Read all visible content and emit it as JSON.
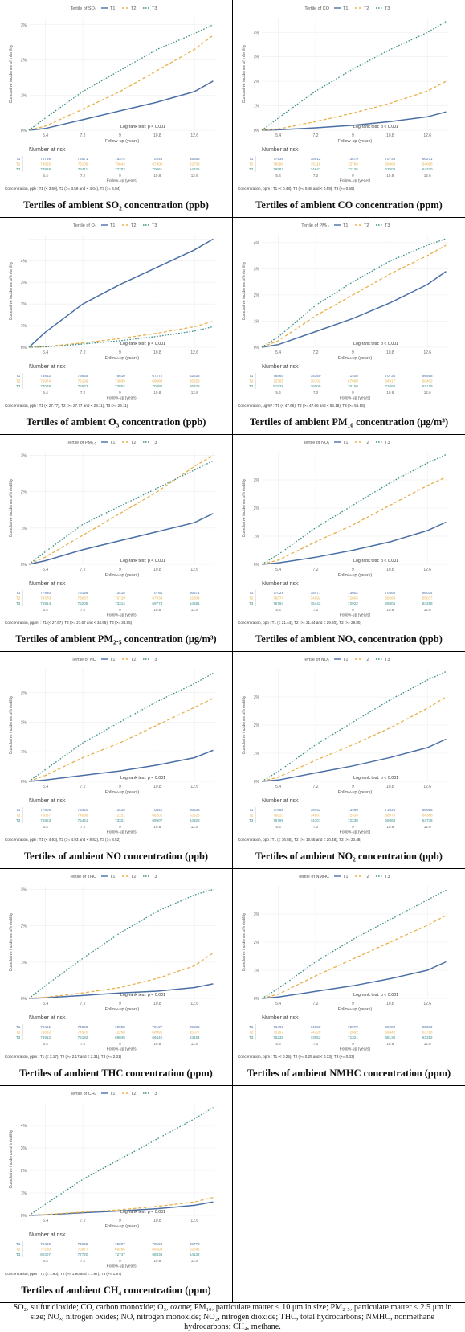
{
  "common": {
    "legend_title_prefix": "Tertile of",
    "tertile_names": [
      "T1",
      "T2",
      "T3"
    ],
    "ylabel": "Cumulative incidence of infertility",
    "xlabel": "Follow-up (years)",
    "x_ticks": [
      "5.4",
      "7.2",
      "9",
      "10.8",
      "12.6"
    ],
    "risk_title": "Number at risk",
    "series_colors": [
      "#4a6fa5",
      "#e8b04a",
      "#3c8f8a"
    ],
    "y_ticks": [
      "0%",
      "1%",
      "2%",
      "3%",
      "4%"
    ]
  },
  "chart_data": [
    {
      "type": "line",
      "pollutant": "SO₂",
      "title": "Tertiles of ambient SO₂ concentration (ppb)",
      "logrank": "Log-rank test: p < 0.001",
      "concentration": "Concentration, ppb : T1 (< 3.59), T2 (>= 3.59 and < 4.04), T3 (>= 4.04)",
      "x": [
        4.6,
        5.4,
        7.2,
        9,
        10.8,
        12.6,
        13.5
      ],
      "ylim": [
        0,
        3.2
      ],
      "y_ticks_shown": 4,
      "series": [
        {
          "name": "T1",
          "values": [
            0,
            0.05,
            0.3,
            0.55,
            0.8,
            1.1,
            1.4
          ]
        },
        {
          "name": "T2",
          "values": [
            0,
            0.12,
            0.6,
            1.1,
            1.7,
            2.3,
            2.7
          ]
        },
        {
          "name": "T3",
          "values": [
            0,
            0.35,
            1.1,
            1.7,
            2.3,
            2.75,
            3.0
          ]
        }
      ],
      "risk": [
        [
          "76798",
          "76071",
          "75374",
          "70246",
          "65655"
        ],
        [
          "74865",
          "73109",
          "70642",
          "67400",
          "62733"
        ],
        [
          "74928",
          "74411",
          "72782",
          "70061",
          "64825"
        ]
      ]
    },
    {
      "type": "line",
      "pollutant": "CO",
      "title": "Tertiles of ambient CO concentration (ppm)",
      "logrank": "Log-rank test: p < 0.001",
      "concentration": "Concentration, ppm : T1 (< 0.48), T2 (>= 0.48 and < 0.59), T3 (>= 0.59)",
      "x": [
        4.6,
        5.4,
        7.2,
        9,
        10.8,
        12.6,
        13.5
      ],
      "ylim": [
        0,
        4.6
      ],
      "y_ticks_shown": 5,
      "series": [
        {
          "name": "T1",
          "values": [
            0,
            0.02,
            0.1,
            0.2,
            0.35,
            0.55,
            0.75
          ]
        },
        {
          "name": "T2",
          "values": [
            0,
            0.05,
            0.35,
            0.7,
            1.1,
            1.6,
            2.0
          ]
        },
        {
          "name": "T3",
          "values": [
            0,
            0.5,
            1.6,
            2.5,
            3.3,
            4.0,
            4.45
          ]
        }
      ],
      "risk": [
        [
          "77538",
          "75912",
          "73579",
          "70735",
          "66271"
        ],
        [
          "76998",
          "75118",
          "72783",
          "69469",
          "64668"
        ],
        [
          "76587",
          "74842",
          "71136",
          "67908",
          "64270"
        ]
      ]
    },
    {
      "type": "line",
      "pollutant": "O₃",
      "title": "Tertiles of ambient O₃ concentration (ppb)",
      "logrank": "Log-rank test: p < 0.001",
      "concentration": "Concentration, ppb : T1 (< 27.77), T2 (>= 27.77 and < 29.11), T3 (>= 29.11)",
      "x": [
        4.6,
        5.4,
        7.2,
        9,
        10.8,
        12.6,
        13.5
      ],
      "ylim": [
        0,
        5.2
      ],
      "y_ticks_shown": 6,
      "series": [
        {
          "name": "T1",
          "values": [
            0,
            0.7,
            2.0,
            2.9,
            3.7,
            4.5,
            5.0
          ]
        },
        {
          "name": "T2",
          "values": [
            0,
            0.03,
            0.2,
            0.4,
            0.65,
            0.95,
            1.2
          ]
        },
        {
          "name": "T3",
          "values": [
            0,
            0.02,
            0.15,
            0.3,
            0.5,
            0.75,
            0.95
          ]
        }
      ],
      "risk": [
        [
          "76852",
          "75665",
          "76610",
          "67272",
          "62535"
        ],
        [
          "76974",
          "75199",
          "73039",
          "69880",
          "66258"
        ],
        [
          "77069",
          "75662",
          "73854",
          "70880",
          "66328"
        ]
      ]
    },
    {
      "type": "line",
      "pollutant": "PM₁₀",
      "title": "Tertiles of ambient PM₁₀ concentration (μg/m³)",
      "logrank": "Log-rank test: p < 0.001",
      "concentration": "Concentration, μg/m³ : T1 (< 47.66), T2 (>= 47.66 and < 56.18), T3 (>= 56.18)",
      "x": [
        4.6,
        5.4,
        7.2,
        9,
        10.8,
        12.6,
        13.5
      ],
      "ylim": [
        0,
        4.3
      ],
      "y_ticks_shown": 5,
      "series": [
        {
          "name": "T1",
          "values": [
            0,
            0.1,
            0.6,
            1.1,
            1.7,
            2.4,
            2.9
          ]
        },
        {
          "name": "T2",
          "values": [
            0,
            0.25,
            1.2,
            2.0,
            2.8,
            3.5,
            3.9
          ]
        },
        {
          "name": "T3",
          "values": [
            0,
            0.4,
            1.6,
            2.5,
            3.3,
            3.9,
            4.15
          ]
        }
      ],
      "risk": [
        [
          "76865",
          "75360",
          "71408",
          "70735",
          "66658"
        ],
        [
          "72365",
          "70132",
          "67909",
          "64917",
          "60462"
        ],
        [
          "81829",
          "78009",
          "76150",
          "72660",
          "67129"
        ]
      ]
    },
    {
      "type": "line",
      "pollutant": "PM₂.₅",
      "title": "Tertiles of ambient PM₂.₅ concentration (μg/m³)",
      "logrank": "Log-rank test: p < 0.001",
      "concentration": "Concentration, μg/m³ : T1 (< 27.67), T2 (>= 27.67 and < 34.95), T3 (>= 34.95)",
      "x": [
        4.6,
        5.4,
        7.2,
        9,
        10.8,
        12.6,
        13.5
      ],
      "ylim": [
        0,
        3.1
      ],
      "y_ticks_shown": 4,
      "series": [
        {
          "name": "T1",
          "values": [
            0,
            0.1,
            0.4,
            0.65,
            0.9,
            1.15,
            1.4
          ]
        },
        {
          "name": "T2",
          "values": [
            0,
            0.2,
            0.8,
            1.4,
            2.0,
            2.7,
            3.0
          ]
        },
        {
          "name": "T3",
          "values": [
            0,
            0.35,
            1.1,
            1.6,
            2.1,
            2.6,
            2.85
          ]
        }
      ],
      "risk": [
        [
          "77930",
          "76189",
          "73418",
          "70784",
          "66674"
        ],
        [
          "74370",
          "73087",
          "70729",
          "67938",
          "62804"
        ],
        [
          "75914",
          "75205",
          "73314",
          "69773",
          "64691"
        ]
      ]
    },
    {
      "type": "line",
      "pollutant": "NOₓ",
      "title": "Tertiles of ambient NOₓ concentration (ppb)",
      "logrank": "Log-rank test: p < 0.001",
      "concentration": "Concentration, ppb : T1 (< 21.44), T2 (>= 21.44 and < 29.80), T3 (>= 29.80)",
      "x": [
        4.6,
        5.4,
        7.2,
        9,
        10.8,
        12.6,
        13.5
      ],
      "ylim": [
        0,
        4.0
      ],
      "y_ticks_shown": 4,
      "series": [
        {
          "name": "T1",
          "values": [
            0,
            0.05,
            0.25,
            0.5,
            0.8,
            1.2,
            1.5
          ]
        },
        {
          "name": "T2",
          "values": [
            0,
            0.15,
            0.8,
            1.4,
            2.1,
            2.8,
            3.1
          ]
        },
        {
          "name": "T3",
          "values": [
            0,
            0.35,
            1.3,
            2.1,
            2.9,
            3.6,
            3.9
          ]
        }
      ],
      "risk": [
        [
          "77029",
          "75477",
          "73002",
          "70365",
          "66034"
        ],
        [
          "76874",
          "74992",
          "72603",
          "69264",
          "65037"
        ],
        [
          "76794",
          "75442",
          "72922",
          "69305",
          "64318"
        ]
      ]
    },
    {
      "type": "line",
      "pollutant": "NO",
      "title": "Tertiles of ambient NO concentration (ppb)",
      "logrank": "Log-rank test: p < 0.001",
      "concentration": "Concentration, ppb : T1 (< 4.93), T2 (>= 4.93 and < 8.52), T3 (>= 8.52)",
      "x": [
        4.6,
        5.4,
        7.2,
        9,
        10.8,
        12.6,
        13.5
      ],
      "ylim": [
        0,
        3.8
      ],
      "y_ticks_shown": 4,
      "series": [
        {
          "name": "T1",
          "values": [
            0,
            0.05,
            0.2,
            0.35,
            0.55,
            0.8,
            1.05
          ]
        },
        {
          "name": "T2",
          "values": [
            0,
            0.2,
            0.8,
            1.3,
            1.9,
            2.5,
            2.8
          ]
        },
        {
          "name": "T3",
          "values": [
            0,
            0.4,
            1.3,
            2.0,
            2.7,
            3.3,
            3.65
          ]
        }
      ],
      "risk": [
        [
          "77805",
          "75420",
          "73425",
          "70441",
          "66333"
        ],
        [
          "75087",
          "74988",
          "72131",
          "68201",
          "63523"
        ],
        [
          "75853",
          "75461",
          "73321",
          "69907",
          "64328"
        ]
      ]
    },
    {
      "type": "line",
      "pollutant": "NO₂",
      "title": "Tertiles of ambient NO₂ concentration (ppb)",
      "logrank": "Log-rank test: p < 0.001",
      "concentration": "Concentration, ppb : T1 (< 16.55), T2 (>= 16.55 and < 20.48), T3 (>= 20.48)",
      "x": [
        4.6,
        5.4,
        7.2,
        9,
        10.8,
        12.6,
        13.5
      ],
      "ylim": [
        0,
        4.0
      ],
      "y_ticks_shown": 4,
      "series": [
        {
          "name": "T1",
          "values": [
            0,
            0.05,
            0.3,
            0.55,
            0.85,
            1.2,
            1.5
          ]
        },
        {
          "name": "T2",
          "values": [
            0,
            0.15,
            0.75,
            1.3,
            1.9,
            2.6,
            3.0
          ]
        },
        {
          "name": "T3",
          "values": [
            0,
            0.35,
            1.3,
            2.1,
            2.9,
            3.6,
            3.9
          ]
        }
      ],
      "risk": [
        [
          "77688",
          "75442",
          "73469",
          "71028",
          "66918"
        ],
        [
          "76823",
          "74897",
          "72333",
          "68973",
          "64388"
        ],
        [
          "76799",
          "74301",
          "72238",
          "69368",
          "64738"
        ]
      ]
    },
    {
      "type": "line",
      "pollutant": "THC",
      "title": "Tertiles of ambient THC concentration (ppm)",
      "logrank": "Log-rank test: p < 0.001",
      "concentration": "Concentration, ppm : T1 (< 2.17), T2 (>= 2.17 and < 2.31), T3 (>= 2.31)",
      "x": [
        4.6,
        5.4,
        7.2,
        9,
        10.8,
        12.6,
        13.5
      ],
      "ylim": [
        0,
        3.1
      ],
      "y_ticks_shown": 4,
      "series": [
        {
          "name": "T1",
          "values": [
            0,
            0.02,
            0.08,
            0.15,
            0.2,
            0.3,
            0.4
          ]
        },
        {
          "name": "T2",
          "values": [
            0,
            0.03,
            0.15,
            0.3,
            0.55,
            0.9,
            1.25
          ]
        },
        {
          "name": "T3",
          "values": [
            0,
            0.35,
            1.1,
            1.8,
            2.4,
            2.85,
            3.0
          ]
        }
      ],
      "risk": [
        [
          "76461",
          "74890",
          "72958",
          "70197",
          "65989"
        ],
        [
          "76682",
          "74570",
          "72268",
          "68991",
          "65077"
        ],
        [
          "76912",
          "75192",
          "69045",
          "66442",
          "63154"
        ]
      ]
    },
    {
      "type": "line",
      "pollutant": "NMHC",
      "title": "Tertiles of ambient NMHC concentration (ppm)",
      "logrank": "Log-rank test: p < 0.001",
      "concentration": "Concentration, ppm : T1 (< 0.25), T2 (>= 0.25 and < 0.33), T3 (>= 0.33)",
      "x": [
        4.6,
        5.4,
        7.2,
        9,
        10.8,
        12.6,
        13.5
      ],
      "ylim": [
        0,
        4.0
      ],
      "y_ticks_shown": 4,
      "series": [
        {
          "name": "T1",
          "values": [
            0,
            0.05,
            0.25,
            0.45,
            0.7,
            1.0,
            1.3
          ]
        },
        {
          "name": "T2",
          "values": [
            0,
            0.15,
            0.8,
            1.4,
            2.0,
            2.6,
            2.95
          ]
        },
        {
          "name": "T3",
          "values": [
            0,
            0.35,
            1.3,
            2.1,
            2.8,
            3.5,
            3.85
          ]
        }
      ],
      "risk": [
        [
          "76469",
          "74892",
          "72979",
          "69980",
          "65901"
        ],
        [
          "75197",
          "74229",
          "72692",
          "69442",
          "63718"
        ],
        [
          "75238",
          "73652",
          "71321",
          "68130",
          "63312"
        ]
      ]
    },
    {
      "type": "line",
      "pollutant": "CH₄",
      "title": "Tertiles of ambient CH₄ concentration (ppm)",
      "logrank": "Log-rank test: p < 0.001",
      "concentration": "Concentration, ppm : T1 (< 1.90), T2 (>= 1.90 and < 1.97), T3 (>= 1.97)",
      "x": [
        4.6,
        5.4,
        7.2,
        9,
        10.8,
        12.6,
        13.5
      ],
      "ylim": [
        0,
        5.0
      ],
      "y_ticks_shown": 5,
      "series": [
        {
          "name": "T1",
          "values": [
            0,
            0.03,
            0.12,
            0.2,
            0.3,
            0.45,
            0.6
          ]
        },
        {
          "name": "T2",
          "values": [
            0,
            0.04,
            0.15,
            0.25,
            0.4,
            0.6,
            0.8
          ]
        },
        {
          "name": "T3",
          "values": [
            0,
            0.5,
            1.6,
            2.5,
            3.4,
            4.3,
            4.8
          ]
        }
      ],
      "risk": [
        [
          "76460",
          "74652",
          "72297",
          "70590",
          "65778"
        ],
        [
          "77280",
          "75877",
          "69285",
          "66594",
          "62841"
        ],
        [
          "80307",
          "77720",
          "72747",
          "68838",
          "64132"
        ]
      ]
    }
  ],
  "footnote": "SO₂, sulfur dioxide; CO, carbon monoxide; O₃, ozone; PM₁₀, particulate matter < 10 μm in size; PM₂.₅, particulate matter < 2.5 μm in size; NOₓ, nitrogen oxides; NO, nitrogen monoxide; NO₂, nitrogen dioxide; THC, total hydrocarbons; NMHC, nonmethane hydrocarbons; CH₄, methane."
}
